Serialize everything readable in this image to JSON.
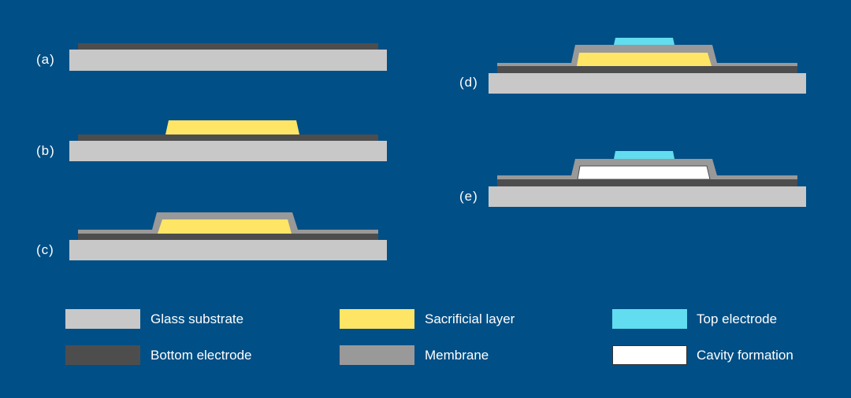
{
  "colors": {
    "background": "#004f86",
    "glass": "#c8c8c8",
    "bottom_electrode": "#4d4d4d",
    "sacrificial": "#ffe566",
    "membrane": "#999999",
    "top_electrode": "#62dcef",
    "cavity": "#ffffff"
  },
  "steps": [
    "(a)",
    "(b)",
    "(c)",
    "(d)",
    "(e)"
  ],
  "legend": [
    {
      "label": "Glass substrate",
      "color": "#c8c8c8"
    },
    {
      "label": "Sacrificial layer",
      "color": "#ffe566"
    },
    {
      "label": "Top electrode",
      "color": "#62dcef"
    },
    {
      "label": "Bottom electrode",
      "color": "#4d4d4d"
    },
    {
      "label": "Membrane",
      "color": "#999999"
    },
    {
      "label": "Cavity formation",
      "color": "#ffffff"
    }
  ]
}
